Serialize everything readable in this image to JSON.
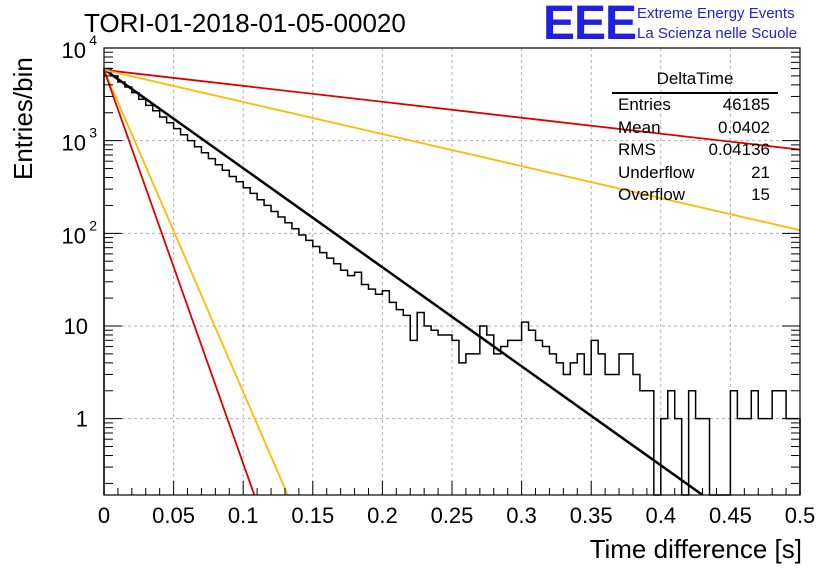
{
  "title": "TORI-01-2018-01-05-00020",
  "logo": {
    "mark": "EEE",
    "line1": "Extreme Energy Events",
    "line2": "La Scienza nelle Scuole"
  },
  "colors": {
    "histogram": "#000000",
    "fit": "#000000",
    "red_lines": "#dd0000",
    "orange_lines": "#ffbb00",
    "grid": "#b0b0b0",
    "logo": "#2020e0"
  },
  "stats_box": {
    "name": "DeltaTime",
    "rows": [
      {
        "label": "Entries",
        "value": "46185"
      },
      {
        "label": "Mean",
        "value": "0.0402"
      },
      {
        "label": "RMS",
        "value": "0.04136"
      },
      {
        "label": "Underflow",
        "value": "21"
      },
      {
        "label": "Overflow",
        "value": "15"
      }
    ]
  },
  "chart_data": {
    "type": "line",
    "xlabel": "Time difference [s]",
    "ylabel": "Entries/bin",
    "xlim": [
      0,
      0.5
    ],
    "ylim": [
      0.15,
      10000
    ],
    "yscale": "log",
    "grid": true,
    "xticks": [
      {
        "value": 0,
        "label": "0"
      },
      {
        "value": 0.05,
        "label": "0.05"
      },
      {
        "value": 0.1,
        "label": "0.1"
      },
      {
        "value": 0.15,
        "label": "0.15"
      },
      {
        "value": 0.2,
        "label": "0.2"
      },
      {
        "value": 0.25,
        "label": "0.25"
      },
      {
        "value": 0.3,
        "label": "0.3"
      },
      {
        "value": 0.35,
        "label": "0.35"
      },
      {
        "value": 0.4,
        "label": "0.4"
      },
      {
        "value": 0.45,
        "label": "0.45"
      },
      {
        "value": 0.5,
        "label": "0.5"
      }
    ],
    "yticks": [
      {
        "value": 1,
        "label": "1"
      },
      {
        "value": 10,
        "label": "10"
      },
      {
        "value": 100,
        "label": "10",
        "exp": "2"
      },
      {
        "value": 1000,
        "label": "10",
        "exp": "3"
      },
      {
        "value": 10000,
        "label": "10",
        "exp": "4"
      }
    ],
    "histogram": {
      "bin_width": 0.005,
      "counts": [
        6000,
        5000,
        4300,
        3800,
        3300,
        2800,
        2400,
        2100,
        1800,
        1560,
        1350,
        1160,
        1000,
        860,
        740,
        640,
        550,
        480,
        410,
        360,
        310,
        270,
        230,
        200,
        172,
        150,
        130,
        112,
        96,
        84,
        72,
        62,
        54,
        47,
        40,
        35,
        38,
        28,
        25,
        22,
        24,
        18,
        15,
        13,
        7,
        14,
        10,
        9,
        8,
        8,
        7,
        4,
        5,
        5,
        10,
        8,
        5,
        6,
        7,
        7,
        11,
        9,
        7,
        6,
        5,
        4,
        3,
        4,
        5,
        3,
        7,
        5,
        3,
        3,
        5,
        5,
        3,
        2,
        2,
        0,
        1,
        2,
        1,
        0,
        2,
        1,
        1,
        0,
        0,
        0,
        2,
        1,
        1,
        2,
        1,
        1,
        2,
        2,
        1,
        1
      ]
    },
    "series": [
      {
        "style": "fit",
        "color": "#000000",
        "x": [
          0,
          0.43
        ],
        "y": [
          5900,
          0.135
        ]
      },
      {
        "style": "red-slow",
        "color": "#dd0000",
        "x": [
          0,
          0.5
        ],
        "y": [
          5800,
          800
        ]
      },
      {
        "style": "orange-slow",
        "color": "#ffbb00",
        "x": [
          0,
          0.5
        ],
        "y": [
          5800,
          108
        ]
      },
      {
        "style": "orange-fast",
        "color": "#ffbb00",
        "x": [
          0,
          0.132
        ],
        "y": [
          5800,
          0.15
        ]
      },
      {
        "style": "red-fast",
        "color": "#dd0000",
        "x": [
          0,
          0.108
        ],
        "y": [
          5800,
          0.15
        ]
      }
    ]
  }
}
